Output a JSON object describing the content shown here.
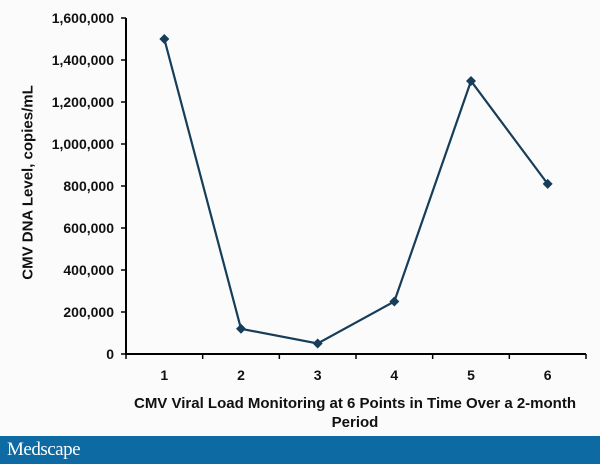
{
  "chart_data": {
    "type": "line",
    "title": "",
    "xlabel": "CMV Viral Load Monitoring at 6 Points in Time Over a 2-month Period",
    "ylabel": "CMV DNA Level, copies/mL",
    "categories": [
      "1",
      "2",
      "3",
      "4",
      "5",
      "6"
    ],
    "series": [
      {
        "name": "CMV DNA Level",
        "values": [
          1500000,
          120000,
          50000,
          250000,
          1300000,
          810000
        ],
        "color": "#163d5a",
        "marker": "diamond"
      }
    ],
    "ylim": [
      0,
      1600000
    ],
    "yticks": [
      0,
      200000,
      400000,
      600000,
      800000,
      1000000,
      1200000,
      1400000,
      1600000
    ],
    "ytick_labels": [
      "0",
      "200,000",
      "400,000",
      "600,000",
      "800,000",
      "1,000,000",
      "1,200,000",
      "1,400,000",
      "1,600,000"
    ],
    "grid": false,
    "legend": "none"
  },
  "labels": {
    "ylabel": "CMV DNA Level, copies/mL",
    "xlabel": "CMV Viral Load Monitoring at 6 Points in Time Over a 2-month Period"
  },
  "footer": {
    "brand": "Medscape",
    "color": "#0e6aa2"
  }
}
